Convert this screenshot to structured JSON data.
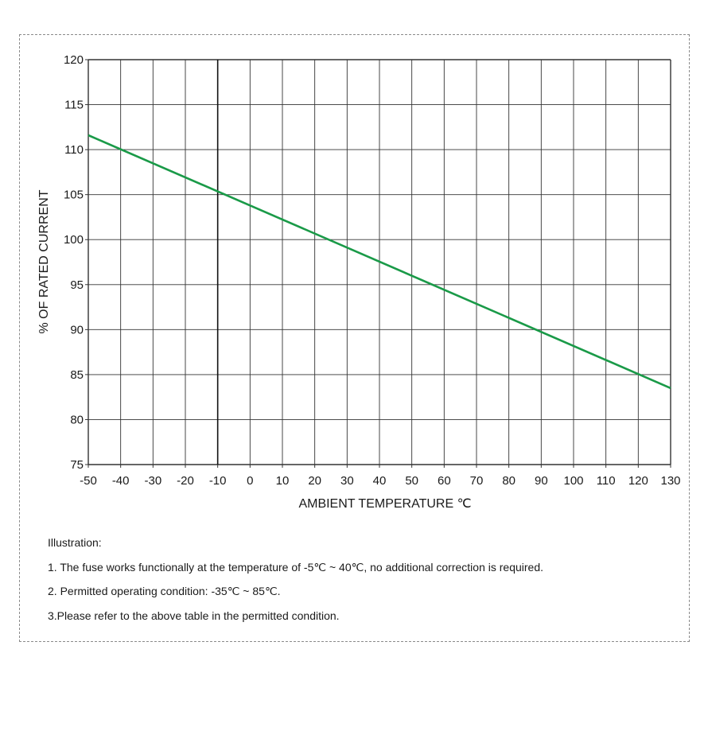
{
  "chart_data": {
    "type": "line",
    "title": "",
    "xlabel": "AMBIENT TEMPERATURE ℃",
    "ylabel": "% OF RATED CURRENT",
    "xlim": [
      -50,
      130
    ],
    "ylim": [
      75,
      120
    ],
    "xticks": [
      -50,
      -40,
      -30,
      -20,
      -10,
      0,
      10,
      20,
      30,
      40,
      50,
      60,
      70,
      80,
      90,
      100,
      110,
      120,
      130
    ],
    "yticks": [
      75,
      80,
      85,
      90,
      95,
      100,
      105,
      110,
      115,
      120
    ],
    "grid": true,
    "series": [
      {
        "x": [
          -50,
          130
        ],
        "y": [
          111.6,
          83.5
        ],
        "color": "#1a9a48"
      }
    ]
  },
  "notes": {
    "heading": "Illustration:",
    "items": [
      "1. The fuse works functionally at the temperature of -5℃ ~ 40℃, no additional correction is required.",
      "2. Permitted operating condition: -35℃ ~ 85℃.",
      "3.Please refer to the above table in the permitted condition."
    ]
  }
}
